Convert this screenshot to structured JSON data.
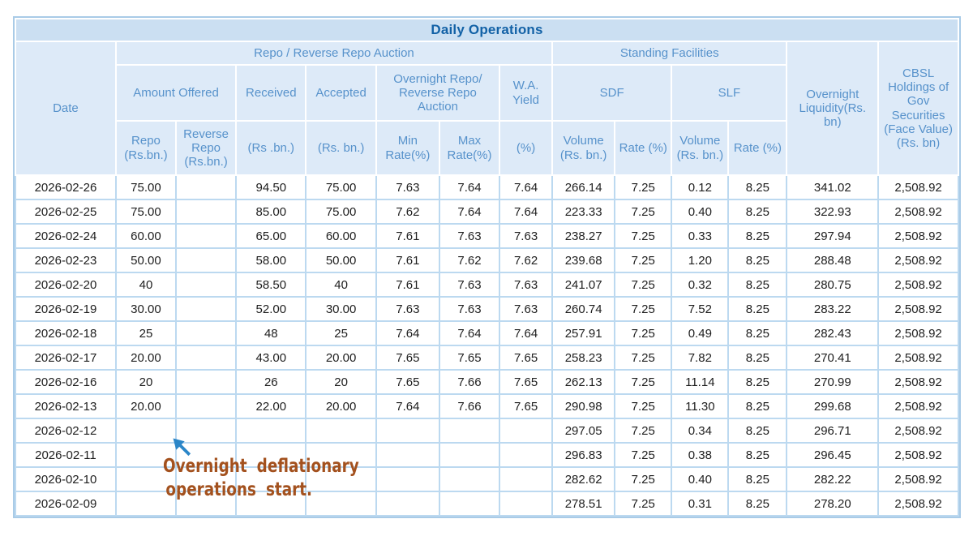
{
  "title": "Daily Operations",
  "header": {
    "date": "Date",
    "repo_group": "Repo / Reverse Repo Auction",
    "standing_group": "Standing Facilities",
    "amount_offered": "Amount Offered",
    "received": "Received",
    "accepted": "Accepted",
    "overnight_auction": "Overnight Repo/ Reverse Repo Auction",
    "wa_yield": "W.A. Yield",
    "sdf": "SDF",
    "slf": "SLF",
    "overnight_liquidity": "Overnight Liquidity(Rs. bn)",
    "cbsl_holdings": "CBSL Holdings of Gov Securities (Face Value) (Rs. bn)",
    "repo_offered_unit": "Repo (Rs.bn.)",
    "reverse_repo_offered_unit": "Reverse Repo (Rs.bn.)",
    "received_unit": "(Rs .bn.)",
    "accepted_unit": "(Rs. bn.)",
    "min_rate": "Min Rate(%)",
    "max_rate": "Max Rate(%)",
    "wa_yield_unit": "(%)",
    "sdf_volume": "Volume (Rs. bn.)",
    "sdf_rate": "Rate (%)",
    "slf_volume": "Volume (Rs. bn.)",
    "slf_rate": "Rate (%)"
  },
  "annotation": {
    "line1": "Overnight deflationary",
    "line2": "operations start.",
    "cursor_icon": "cursor-arrow-icon"
  },
  "colors": {
    "title_bar_bg": "#cbdff2",
    "title_text": "#1261a6",
    "header_bg": "#ddeaf8",
    "header_text": "#5792cb",
    "grid_line": "#bcd9f0",
    "data_text": "#1e1e1e",
    "annotation_text": "#a3511e",
    "cursor_blue": "#2b86c8"
  },
  "chart_data": {
    "type": "table",
    "title": "Daily Operations",
    "columns": [
      "Date",
      "Amount Offered Repo (Rs.bn.)",
      "Amount Offered Reverse Repo (Rs.bn.)",
      "Received (Rs .bn.)",
      "Accepted (Rs. bn.)",
      "Min Rate(%)",
      "Max Rate(%)",
      "W.A. Yield (%)",
      "SDF Volume (Rs. bn.)",
      "SDF Rate (%)",
      "SLF Volume (Rs. bn.)",
      "SLF Rate (%)",
      "Overnight Liquidity(Rs. bn)",
      "CBSL Holdings of Gov Securities (Face Value) (Rs. bn)"
    ],
    "rows": [
      [
        "2026-02-26",
        "75.00",
        "",
        "94.50",
        "75.00",
        "7.63",
        "7.64",
        "7.64",
        "266.14",
        "7.25",
        "0.12",
        "8.25",
        "341.02",
        "2,508.92"
      ],
      [
        "2026-02-25",
        "75.00",
        "",
        "85.00",
        "75.00",
        "7.62",
        "7.64",
        "7.64",
        "223.33",
        "7.25",
        "0.40",
        "8.25",
        "322.93",
        "2,508.92"
      ],
      [
        "2026-02-24",
        "60.00",
        "",
        "65.00",
        "60.00",
        "7.61",
        "7.63",
        "7.63",
        "238.27",
        "7.25",
        "0.33",
        "8.25",
        "297.94",
        "2,508.92"
      ],
      [
        "2026-02-23",
        "50.00",
        "",
        "58.00",
        "50.00",
        "7.61",
        "7.62",
        "7.62",
        "239.68",
        "7.25",
        "1.20",
        "8.25",
        "288.48",
        "2,508.92"
      ],
      [
        "2026-02-20",
        "40",
        "",
        "58.50",
        "40",
        "7.61",
        "7.63",
        "7.63",
        "241.07",
        "7.25",
        "0.32",
        "8.25",
        "280.75",
        "2,508.92"
      ],
      [
        "2026-02-19",
        "30.00",
        "",
        "52.00",
        "30.00",
        "7.63",
        "7.63",
        "7.63",
        "260.74",
        "7.25",
        "7.52",
        "8.25",
        "283.22",
        "2,508.92"
      ],
      [
        "2026-02-18",
        "25",
        "",
        "48",
        "25",
        "7.64",
        "7.64",
        "7.64",
        "257.91",
        "7.25",
        "0.49",
        "8.25",
        "282.43",
        "2,508.92"
      ],
      [
        "2026-02-17",
        "20.00",
        "",
        "43.00",
        "20.00",
        "7.65",
        "7.65",
        "7.65",
        "258.23",
        "7.25",
        "7.82",
        "8.25",
        "270.41",
        "2,508.92"
      ],
      [
        "2026-02-16",
        "20",
        "",
        "26",
        "20",
        "7.65",
        "7.66",
        "7.65",
        "262.13",
        "7.25",
        "11.14",
        "8.25",
        "270.99",
        "2,508.92"
      ],
      [
        "2026-02-13",
        "20.00",
        "",
        "22.00",
        "20.00",
        "7.64",
        "7.66",
        "7.65",
        "290.98",
        "7.25",
        "11.30",
        "8.25",
        "299.68",
        "2,508.92"
      ],
      [
        "2026-02-12",
        "",
        "",
        "",
        "",
        "",
        "",
        "",
        "297.05",
        "7.25",
        "0.34",
        "8.25",
        "296.71",
        "2,508.92"
      ],
      [
        "2026-02-11",
        "",
        "",
        "",
        "",
        "",
        "",
        "",
        "296.83",
        "7.25",
        "0.38",
        "8.25",
        "296.45",
        "2,508.92"
      ],
      [
        "2026-02-10",
        "",
        "",
        "",
        "",
        "",
        "",
        "",
        "282.62",
        "7.25",
        "0.40",
        "8.25",
        "282.22",
        "2,508.92"
      ],
      [
        "2026-02-09",
        "",
        "",
        "",
        "",
        "",
        "",
        "",
        "278.51",
        "7.25",
        "0.31",
        "8.25",
        "278.20",
        "2,508.92"
      ]
    ]
  }
}
